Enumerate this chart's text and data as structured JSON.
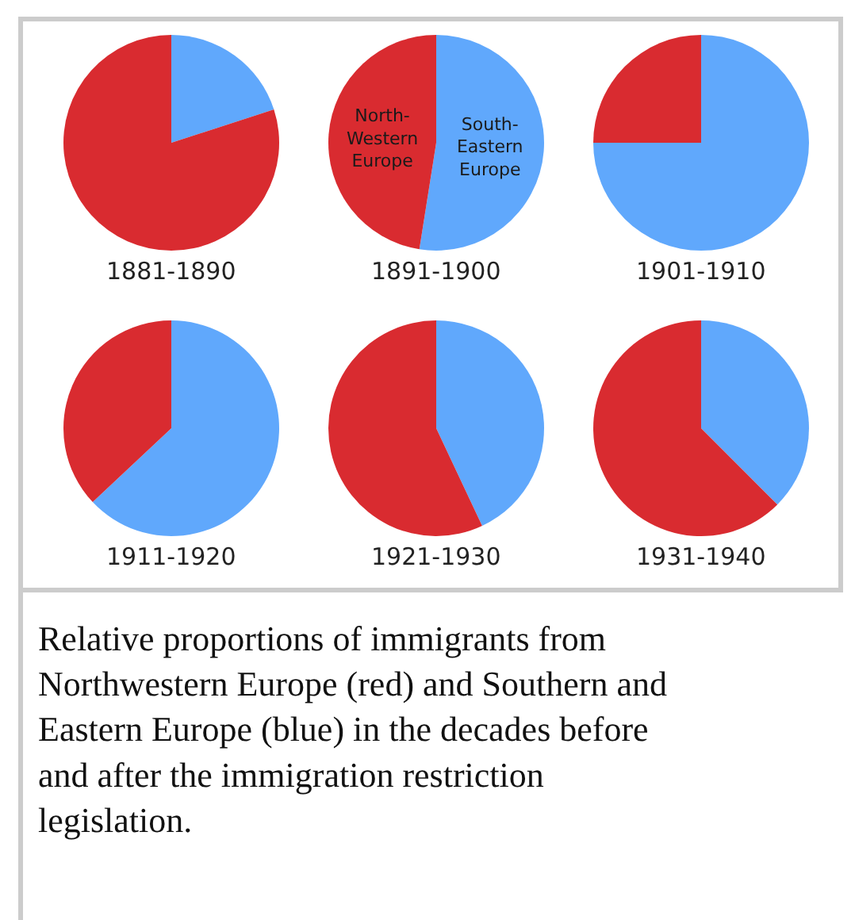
{
  "chart_data": [
    {
      "type": "pie",
      "title": "1881-1890",
      "categories": [
        null,
        null
      ],
      "values": [
        20,
        80
      ],
      "colors": [
        "#60a8fc",
        "#d92b30"
      ]
    },
    {
      "type": "pie",
      "title": "1891-1900",
      "categories": [
        "South-\nEastern\nEurope",
        "North-\nWestern\nEurope"
      ],
      "values": [
        52.5,
        47.5
      ],
      "colors": [
        "#60a8fc",
        "#d92b30"
      ]
    },
    {
      "type": "pie",
      "title": "1901-1910",
      "categories": [
        null,
        null
      ],
      "values": [
        75,
        25
      ],
      "colors": [
        "#60a8fc",
        "#d92b30"
      ]
    },
    {
      "type": "pie",
      "title": "1911-1920",
      "categories": [
        null,
        null
      ],
      "values": [
        63,
        37
      ],
      "colors": [
        "#60a8fc",
        "#d92b30"
      ]
    },
    {
      "type": "pie",
      "title": "1921-1930",
      "categories": [
        null,
        null
      ],
      "values": [
        43,
        57
      ],
      "colors": [
        "#60a8fc",
        "#d92b30"
      ]
    },
    {
      "type": "pie",
      "title": "1931-1940",
      "categories": [
        null,
        null
      ],
      "values": [
        37.5,
        62.5
      ],
      "colors": [
        "#60a8fc",
        "#d92b30"
      ]
    },
    {
      "type": "other",
      "annotations": [
        "Relative proportions of immigrants from Northwestern Europe (red) and Southern and Eastern Europe (blue) in the decades before and after the immigration restriction legislation."
      ]
    }
  ]
}
